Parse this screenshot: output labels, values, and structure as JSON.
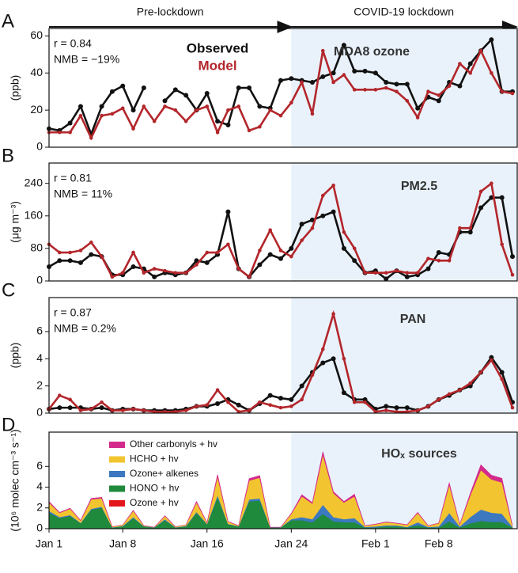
{
  "periods": [
    {
      "label": "Pre-lockdown",
      "start": "Jan 1"
    },
    {
      "label": "COVID-19 lockdown",
      "start": "Jan 24",
      "shaded": true
    }
  ],
  "chart_data": [
    {
      "type": "line",
      "panel_label": "A",
      "title": "MDA8 ozone",
      "ylabel": "(ppb)",
      "annotations": [
        "r = 0.84",
        "NMB = −19%"
      ],
      "ylim": [
        0,
        64
      ],
      "yticks": [
        0,
        20,
        40,
        60
      ],
      "series": [
        {
          "name": "Observed",
          "color": "#111111",
          "values": [
            10,
            9,
            13,
            22,
            7,
            22,
            30,
            33,
            20,
            32,
            null,
            25,
            31,
            28,
            20,
            29,
            14,
            12,
            32,
            32,
            22,
            21,
            36,
            37,
            36,
            35,
            38,
            40,
            55,
            41,
            41,
            40,
            35,
            34,
            34,
            21,
            27,
            25,
            35,
            33,
            45,
            52,
            58,
            30,
            30
          ]
        },
        {
          "name": "Model",
          "color": "#b3262b",
          "values": [
            8,
            8,
            8,
            17,
            5,
            17,
            18,
            21,
            10,
            22,
            14,
            22,
            20,
            14,
            20,
            22,
            8,
            20,
            22,
            9,
            11,
            20,
            17,
            24,
            35,
            18,
            52,
            35,
            39,
            31,
            31,
            31,
            32,
            30,
            25,
            16,
            30,
            28,
            33,
            45,
            40,
            52,
            40,
            30,
            29
          ]
        }
      ]
    },
    {
      "type": "line",
      "panel_label": "B",
      "title": "PM2.5",
      "ylabel": "(μg m⁻³)",
      "annotations": [
        "r = 0.81",
        "NMB = 11%"
      ],
      "ylim": [
        0,
        290
      ],
      "yticks": [
        0,
        80,
        160,
        240
      ],
      "series": [
        {
          "color": "#111111",
          "values": [
            35,
            50,
            50,
            45,
            65,
            60,
            15,
            15,
            35,
            30,
            10,
            20,
            15,
            20,
            50,
            45,
            65,
            170,
            30,
            10,
            40,
            65,
            55,
            80,
            140,
            150,
            160,
            170,
            80,
            50,
            20,
            25,
            5,
            25,
            10,
            15,
            30,
            70,
            65,
            120,
            120,
            180,
            205,
            205,
            60
          ]
        },
        {
          "color": "#b3262b",
          "values": [
            90,
            70,
            70,
            75,
            95,
            60,
            10,
            20,
            70,
            20,
            30,
            25,
            20,
            20,
            40,
            70,
            70,
            90,
            30,
            10,
            75,
            125,
            75,
            60,
            100,
            130,
            210,
            235,
            120,
            80,
            20,
            20,
            20,
            25,
            20,
            20,
            55,
            50,
            50,
            130,
            130,
            220,
            240,
            90,
            15
          ]
        }
      ]
    },
    {
      "type": "line",
      "panel_label": "C",
      "title": "PAN",
      "ylabel": "(ppb)",
      "annotations": [
        "r = 0.87",
        "NMB = 0.2%"
      ],
      "ylim": [
        0,
        8.5
      ],
      "yticks": [
        0,
        2,
        4,
        6
      ],
      "series": [
        {
          "color": "#111111",
          "values": [
            0.3,
            0.4,
            0.4,
            0.4,
            0.3,
            0.4,
            0.2,
            0.3,
            0.3,
            0.2,
            0.2,
            0.2,
            0.2,
            0.3,
            0.5,
            0.5,
            0.7,
            1.0,
            0.6,
            0.2,
            0.7,
            1.3,
            1.1,
            1.0,
            2.0,
            3.0,
            3.7,
            4.0,
            1.5,
            1.0,
            1.0,
            0.3,
            0.5,
            0.4,
            0.4,
            0.2,
            0.5,
            1.0,
            1.3,
            1.7,
            2.0,
            3.0,
            4.1,
            3.0,
            0.8
          ]
        },
        {
          "color": "#b3262b",
          "values": [
            0.3,
            1.3,
            1.0,
            0.2,
            0.3,
            0.8,
            0.2,
            0.2,
            0.3,
            0.2,
            0.1,
            0.1,
            0.1,
            0.2,
            0.5,
            0.6,
            1.7,
            0.8,
            0.1,
            0.2,
            0.8,
            0.6,
            0.4,
            0.5,
            1.0,
            2.8,
            4.7,
            7.3,
            4.0,
            0.8,
            0.8,
            0.1,
            0.2,
            0.1,
            0.1,
            0.2,
            0.5,
            1.0,
            1.4,
            1.7,
            2.2,
            3.0,
            3.9,
            2.5,
            0.4
          ]
        }
      ]
    },
    {
      "type": "stacked_area",
      "panel_label": "D",
      "title": "HOₓ sources",
      "ylabel": "(10⁶ molec cm⁻³ s⁻¹)",
      "ylim": [
        0,
        9.3
      ],
      "yticks": [
        0,
        2,
        4,
        6
      ],
      "categories": [
        "Jan 1",
        null,
        null,
        null,
        null,
        null,
        null,
        "Jan 8",
        null,
        null,
        null,
        null,
        null,
        null,
        null,
        "Jan 16",
        null,
        null,
        null,
        null,
        null,
        null,
        null,
        "Jan 24",
        null,
        null,
        null,
        null,
        null,
        null,
        null,
        "Feb 1",
        null,
        null,
        null,
        null,
        null,
        "Feb 8",
        null,
        null,
        null,
        null,
        null,
        null,
        null
      ],
      "series": [
        {
          "name": "Ozone + hv",
          "color": "#e3161c",
          "values": [
            0.02,
            0.02,
            0.02,
            0.02,
            0.02,
            0.02,
            0.02,
            0.02,
            0.02,
            0.02,
            0.02,
            0.02,
            0.02,
            0.02,
            0.02,
            0.02,
            0.02,
            0.02,
            0.02,
            0.02,
            0.02,
            0.02,
            0.02,
            0.02,
            0.02,
            0.02,
            0.02,
            0.02,
            0.02,
            0.02,
            0.02,
            0.02,
            0.02,
            0.02,
            0.02,
            0.02,
            0.02,
            0.02,
            0.02,
            0.02,
            0.02,
            0.05,
            0.05,
            0.05,
            0.02
          ]
        },
        {
          "name": "HONO + hv",
          "color": "#1f8a3b",
          "values": [
            1.5,
            1.0,
            1.2,
            0.5,
            1.8,
            2.0,
            0.1,
            0.2,
            1.0,
            0.2,
            0.1,
            0.8,
            0.1,
            0.2,
            1.5,
            0.4,
            3.0,
            0.4,
            0.2,
            2.6,
            2.7,
            0.1,
            0.1,
            0.8,
            0.8,
            0.6,
            1.4,
            0.7,
            0.6,
            0.6,
            0.1,
            0.1,
            0.2,
            0.2,
            0.1,
            0.3,
            0.1,
            0.1,
            0.7,
            0.1,
            0.5,
            0.7,
            0.6,
            0.6,
            0.1
          ]
        },
        {
          "name": "Ozone+ alkenes",
          "color": "#3b78c0",
          "values": [
            0.2,
            0.1,
            0.1,
            0.05,
            0.1,
            0.1,
            0.02,
            0.05,
            0.1,
            0.03,
            0.02,
            0.1,
            0.02,
            0.05,
            0.1,
            0.05,
            0.2,
            0.05,
            0.03,
            0.2,
            0.2,
            0.02,
            0.02,
            0.1,
            0.3,
            0.3,
            0.9,
            0.4,
            0.3,
            0.4,
            0.05,
            0.1,
            0.1,
            0.1,
            0.05,
            0.3,
            0.05,
            0.1,
            0.8,
            0.1,
            0.6,
            1.1,
            0.9,
            0.8,
            0.05
          ]
        },
        {
          "name": "HCHO + hv",
          "color": "#f2c530",
          "values": [
            0.8,
            0.4,
            0.6,
            0.2,
            0.9,
            0.8,
            0.05,
            0.1,
            0.6,
            0.05,
            0,
            0.3,
            0.05,
            0.1,
            0.9,
            0.1,
            1.8,
            0.2,
            0.05,
            1.8,
            2.0,
            0,
            0,
            0.5,
            2.0,
            1.5,
            4.8,
            2.3,
            1.6,
            2.1,
            0.1,
            0.2,
            0.3,
            0.2,
            0.2,
            0.9,
            0.1,
            0.3,
            2.7,
            0.2,
            2.1,
            3.8,
            3.2,
            3.0,
            0.1
          ]
        },
        {
          "name": "Other carbonyls + hv",
          "color": "#d42a8c",
          "values": [
            0.1,
            0.05,
            0.05,
            0.03,
            0.1,
            0.1,
            0,
            0,
            0.05,
            0,
            0,
            0.03,
            0,
            0,
            0.1,
            0.02,
            0.2,
            0.02,
            0,
            0.2,
            0.2,
            0,
            0,
            0.05,
            0.15,
            0.1,
            0.3,
            0.15,
            0.1,
            0.2,
            0.02,
            0.02,
            0.03,
            0.02,
            0.02,
            0.05,
            0.02,
            0.02,
            0.2,
            0.02,
            0.2,
            0.5,
            0.4,
            0.4,
            0.02
          ]
        }
      ]
    }
  ]
}
